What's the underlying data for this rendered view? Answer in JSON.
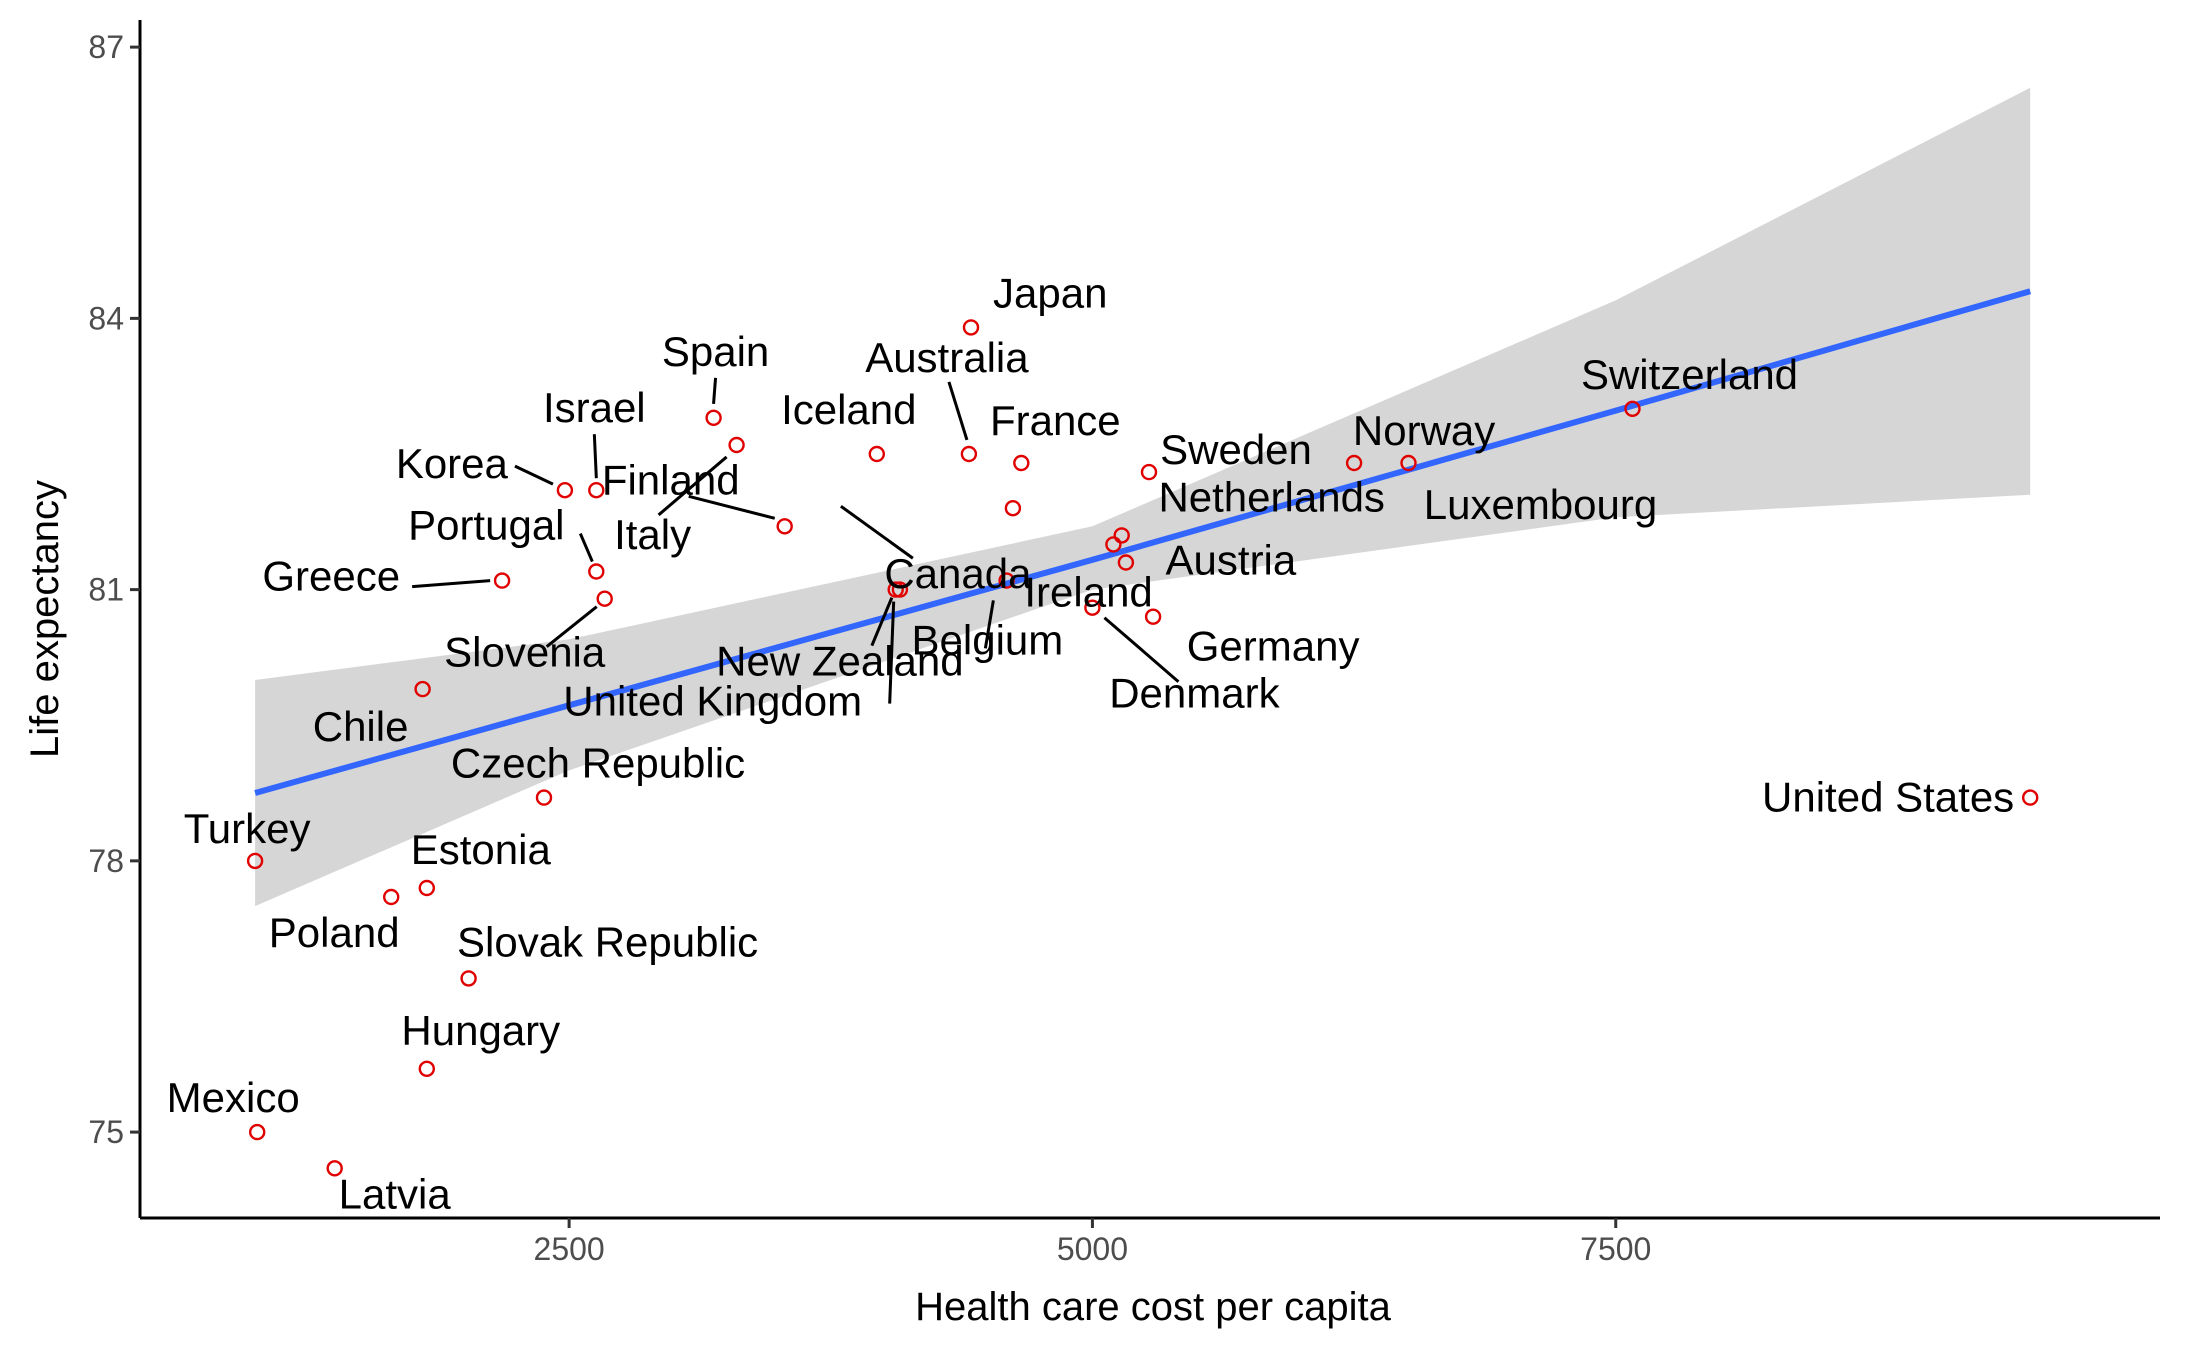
{
  "chart_data": {
    "type": "scatter",
    "xlabel": "Health care cost per capita",
    "ylabel": "Life expectancy",
    "xlim": [
      450,
      10100
    ],
    "ylim": [
      74.05,
      87.3
    ],
    "xticks": [
      2500,
      5000,
      7500
    ],
    "yticks": [
      75,
      78,
      81,
      84,
      87
    ],
    "grid": false,
    "colors": {
      "point": "#e00000",
      "trend": "#3366ff",
      "band": "#d6d6d6"
    },
    "points": [
      {
        "name": "Japan",
        "x": 4420,
        "y": 83.9
      },
      {
        "name": "Spain",
        "x": 3190,
        "y": 82.9
      },
      {
        "name": "Australia",
        "x": 4410,
        "y": 82.5
      },
      {
        "name": "Iceland",
        "x": 3970,
        "y": 82.5
      },
      {
        "name": "France",
        "x": 4660,
        "y": 82.4
      },
      {
        "name": "Israel",
        "x": 2630,
        "y": 82.1
      },
      {
        "name": "Korea",
        "x": 2480,
        "y": 82.1
      },
      {
        "name": "Italy",
        "x": 3300,
        "y": 82.6
      },
      {
        "name": "Sweden",
        "x": 5270,
        "y": 82.3
      },
      {
        "name": "Norway",
        "x": 6250,
        "y": 82.4
      },
      {
        "name": "Switzerland",
        "x": 7580,
        "y": 83.0
      },
      {
        "name": "Luxembourg",
        "x": 6510,
        "y": 82.4
      },
      {
        "name": "Finland",
        "x": 3530,
        "y": 81.7
      },
      {
        "name": "Canada",
        "x": 4620,
        "y": 81.9
      },
      {
        "name": "Netherlands",
        "x": 5140,
        "y": 81.6
      },
      {
        "name": "Portugal",
        "x": 2630,
        "y": 81.2
      },
      {
        "name": "Greece",
        "x": 2180,
        "y": 81.1
      },
      {
        "name": "Slovenia",
        "x": 2670,
        "y": 80.9
      },
      {
        "name": "New Zealand",
        "x": 4080,
        "y": 81.0
      },
      {
        "name": "Ireland",
        "x": 4590,
        "y": 81.1
      },
      {
        "name": "Austria",
        "x": 5160,
        "y": 81.3
      },
      {
        "name": "Belgium",
        "x": 5100,
        "y": 81.5
      },
      {
        "name": "Denmark",
        "x": 5000,
        "y": 80.8
      },
      {
        "name": "Germany",
        "x": 5290,
        "y": 80.7
      },
      {
        "name": "United Kingdom",
        "x": 4060,
        "y": 81.0
      },
      {
        "name": "Chile",
        "x": 1800,
        "y": 79.9
      },
      {
        "name": "Czech Republic",
        "x": 2380,
        "y": 78.7
      },
      {
        "name": "Turkey",
        "x": 1000,
        "y": 78.0
      },
      {
        "name": "Estonia",
        "x": 1820,
        "y": 77.7
      },
      {
        "name": "Poland",
        "x": 1650,
        "y": 77.6
      },
      {
        "name": "Slovak Republic",
        "x": 2020,
        "y": 76.7
      },
      {
        "name": "Hungary",
        "x": 1820,
        "y": 75.7
      },
      {
        "name": "Mexico",
        "x": 1010,
        "y": 75.0
      },
      {
        "name": "Latvia",
        "x": 1380,
        "y": 74.6
      },
      {
        "name": "United States",
        "x": 9480,
        "y": 78.7
      }
    ],
    "trend": {
      "x": [
        1000,
        2500,
        5000,
        7500,
        9480
      ],
      "y": [
        78.75,
        79.72,
        81.33,
        82.98,
        84.3
      ],
      "lower": [
        77.5,
        79.0,
        81.0,
        81.8,
        82.05
      ],
      "upper": [
        80.0,
        80.45,
        81.7,
        84.2,
        86.55
      ]
    }
  }
}
